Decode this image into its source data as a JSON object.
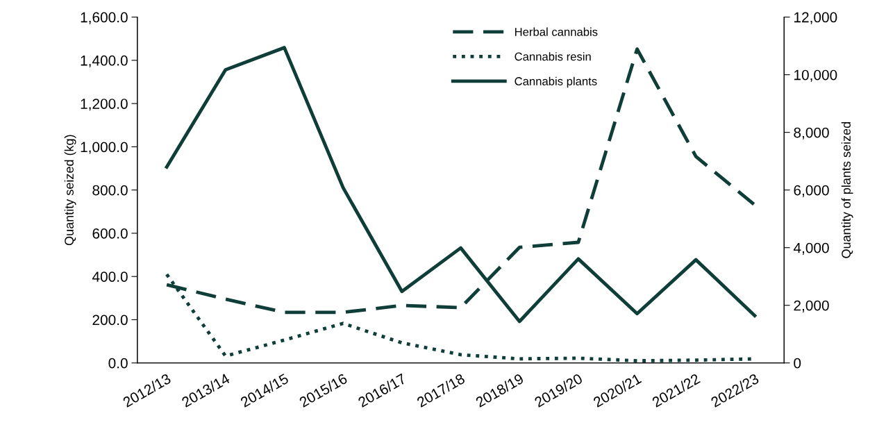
{
  "chart_data": {
    "type": "line",
    "ylabel": "Quantity seized (kg)",
    "y2label": "Quantity of plants seized",
    "categories": [
      "2012/13",
      "2013/14",
      "2014/15",
      "2015/16",
      "2016/17",
      "2017/18",
      "2018/19",
      "2019/20",
      "2020/21",
      "2021/22",
      "2022/23"
    ],
    "series": [
      {
        "name": "Herbal cannabis",
        "color": "#0f3d38",
        "line_style": "dashed",
        "values": [
          362,
          295,
          234,
          234,
          266,
          256,
          535,
          558,
          1452,
          955,
          731
        ]
      },
      {
        "name": "Cannabis resin",
        "color": "#0f3d38",
        "line_style": "dotted",
        "values": [
          410,
          32,
          106,
          183,
          93,
          38,
          19,
          22,
          10,
          13,
          19
        ]
      },
      {
        "name": "Cannabis plants",
        "color": "#0f3d38",
        "line_style": "solid",
        "axis": "y2",
        "values": [
          6800,
          10170,
          10940,
          6080,
          2480,
          3990,
          1440,
          3610,
          1710,
          3580,
          1640
        ]
      }
    ],
    "ylim": [
      0,
      1600
    ],
    "yticks": [
      {
        "value": 0,
        "label": "0.0"
      },
      {
        "value": 200,
        "label": "200.0"
      },
      {
        "value": 400,
        "label": "400.0"
      },
      {
        "value": 600,
        "label": "600.0"
      },
      {
        "value": 800,
        "label": "800.0"
      },
      {
        "value": 1000,
        "label": "1,000.0"
      },
      {
        "value": 1200,
        "label": "1,200.0"
      },
      {
        "value": 1400,
        "label": "1,400.0"
      },
      {
        "value": 1600,
        "label": "1,600.0"
      }
    ],
    "y2lim": [
      0,
      12000
    ],
    "y2ticks": [
      0,
      {
        "value": 2000,
        "label": "2,000"
      },
      {
        "value": 4000,
        "label": "4,000"
      },
      {
        "value": 6000,
        "label": "6,000"
      },
      {
        "value": 8000,
        "label": "8,000"
      },
      {
        "value": 10000,
        "label": "10,000"
      },
      {
        "value": 12000,
        "label": "12,000"
      }
    ],
    "grid": false,
    "legend": "top",
    "marker": "none"
  }
}
